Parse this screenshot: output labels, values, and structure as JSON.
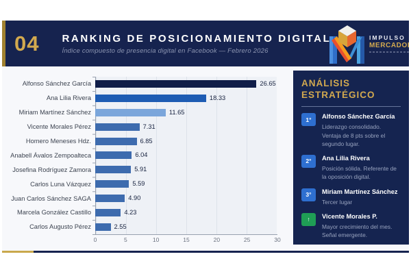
{
  "header": {
    "number": "04",
    "title": "RANKING DE POSICIONAMIENTO DIGITAL",
    "subtitle": "Índice compuesto de presencia digital en Facebook — Febrero 2026"
  },
  "logo": {
    "line1": "IMPULSO",
    "line2": "MERCADOLÓG"
  },
  "chart_data": {
    "type": "bar",
    "orientation": "horizontal",
    "title": "Ranking de posicionamiento digital",
    "xlabel": "",
    "ylabel": "",
    "categories": [
      "Alfonso Sánchez García",
      "Ana Lilia Rivera",
      "Miriam Martínez Sánchez",
      "Vicente Morales Pérez",
      "Homero Meneses Hdz.",
      "Anabell Ávalos Zempoalteca",
      "Josefina Rodríguez Zamora",
      "Carlos Luna Vázquez",
      "Juan Carlos Sánchez SAGA",
      "Marcela González Castillo",
      "Carlos Augusto Pérez"
    ],
    "values": [
      26.65,
      18.33,
      11.65,
      7.31,
      6.85,
      6.04,
      5.91,
      5.59,
      4.9,
      4.23,
      2.55
    ],
    "value_labels": [
      "26.65",
      "18.33",
      "11.65",
      "7.31",
      "6.85",
      "6.04",
      "5.91",
      "5.59",
      "4.90",
      "4.23",
      "2.55"
    ],
    "bar_colors": [
      "#101e49",
      "#1e5cb3",
      "#7ba6db",
      "#3d6bae",
      "#3d6bae",
      "#3d6bae",
      "#3d6bae",
      "#3d6bae",
      "#3d6bae",
      "#3d6bae",
      "#3d6bae"
    ],
    "xlim": [
      0,
      30
    ],
    "xticks": [
      "0",
      "5",
      "10",
      "15",
      "20",
      "25",
      "30"
    ],
    "grid": "vertical",
    "legend": "none"
  },
  "analysis": {
    "title": "ANÁLISIS ESTRATÉGICO",
    "items": [
      {
        "badge": "1°",
        "badge_color": "#2e6fd0",
        "name": "Alfonso Sánchez García",
        "desc": "Liderazgo consolidado. Ventaja de 8 pts sobre el segundo lugar."
      },
      {
        "badge": "2°",
        "badge_color": "#2e6fd0",
        "name": "Ana Lilia Rivera",
        "desc": "Posición sólida. Referente de la oposición digital."
      },
      {
        "badge": "3°",
        "badge_color": "#2e6fd0",
        "name": "Miriam Martínez Sánchez",
        "desc": "Tercer lugar"
      },
      {
        "badge": "↑",
        "badge_color": "#1f9e55",
        "name": "Vicente Morales P.",
        "desc": "Mayor crecimiento del mes. Señal emergente."
      }
    ]
  },
  "colors": {
    "navy": "#16234f",
    "panel_navy": "#152450",
    "gold": "#d2a94f",
    "gold_rule": "#c9a84c",
    "plot_bg": "#eef1f6",
    "badge_blue": "#2e6fd0",
    "badge_green": "#1f9e55"
  }
}
